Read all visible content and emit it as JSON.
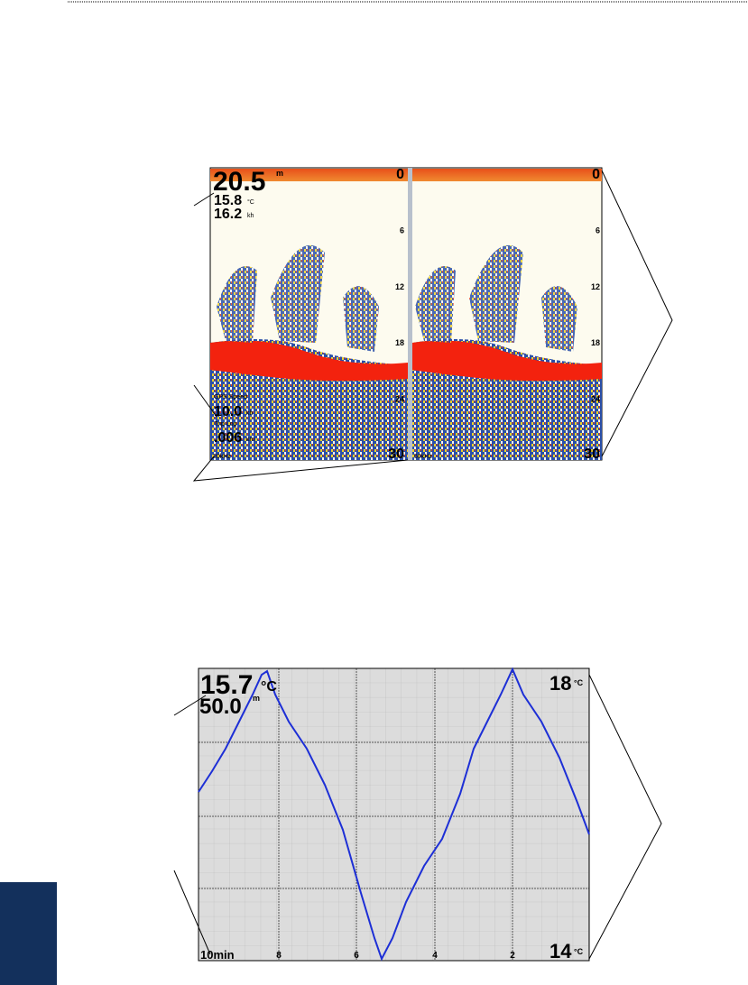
{
  "sonar": {
    "left": {
      "depth": "20.5",
      "depth_unit": "m",
      "temperature": "15.8",
      "temperature_unit": "°C",
      "speed": "16.2",
      "speed_unit": "kh",
      "field_1_label": "GPS Speed",
      "field_1": "10.0",
      "field_1_unit": "kh",
      "field_2_label": "Trip Log",
      "field_2": ".006",
      "field_2_unit": "km",
      "frequency": "20kHz",
      "scale": [
        "0",
        "6",
        "12",
        "18",
        "24",
        "30"
      ]
    },
    "right": {
      "frequency": "50kHz",
      "scale": [
        "0",
        "6",
        "12",
        "18",
        "24",
        "30"
      ]
    }
  },
  "temperature_log": {
    "temperature": "15.7",
    "temperature_unit": "°C",
    "depth": "50.0",
    "depth_unit": "m",
    "scale_top": "18",
    "scale_top_unit": "°C",
    "scale_bottom": "14",
    "scale_bottom_unit": "°C",
    "duration": "10min",
    "time_labels": [
      "8",
      "6",
      "4",
      "2"
    ]
  }
}
